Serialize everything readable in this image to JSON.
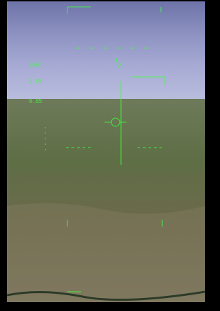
{
  "hud": {
    "readouts": [
      {
        "label": "2500"
      },
      {
        "label": "9.85"
      },
      {
        "label": "0.85"
      }
    ]
  }
}
